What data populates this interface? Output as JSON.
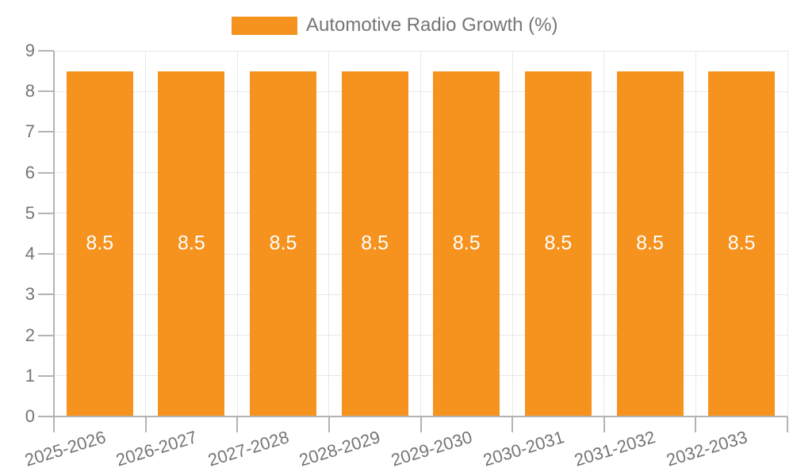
{
  "chart_data": {
    "type": "bar",
    "title": "",
    "legend": {
      "label": "Automotive Radio Growth (%)",
      "position": "top"
    },
    "categories": [
      "2025-2026",
      "2026-2027",
      "2027-2028",
      "2028-2029",
      "2029-2030",
      "2030-2031",
      "2031-2032",
      "2032-2033"
    ],
    "series": [
      {
        "name": "Automotive Radio Growth (%)",
        "values": [
          8.5,
          8.5,
          8.5,
          8.5,
          8.5,
          8.5,
          8.5,
          8.5
        ]
      }
    ],
    "bar_labels": [
      "8.5",
      "8.5",
      "8.5",
      "8.5",
      "8.5",
      "8.5",
      "8.5",
      "8.5"
    ],
    "xlabel": "",
    "ylabel": "",
    "ylim": [
      0,
      9
    ],
    "yticks": [
      0,
      1,
      2,
      3,
      4,
      5,
      6,
      7,
      8,
      9
    ],
    "grid": true,
    "colors": {
      "bar": "#F6921E",
      "bar_label": "#FFFFFF",
      "grid_line": "#E8E8E8",
      "axis_line": "#B3B3B3",
      "tick_text": "#757575",
      "legend_text": "#757575",
      "background": "#FFFFFF"
    }
  }
}
